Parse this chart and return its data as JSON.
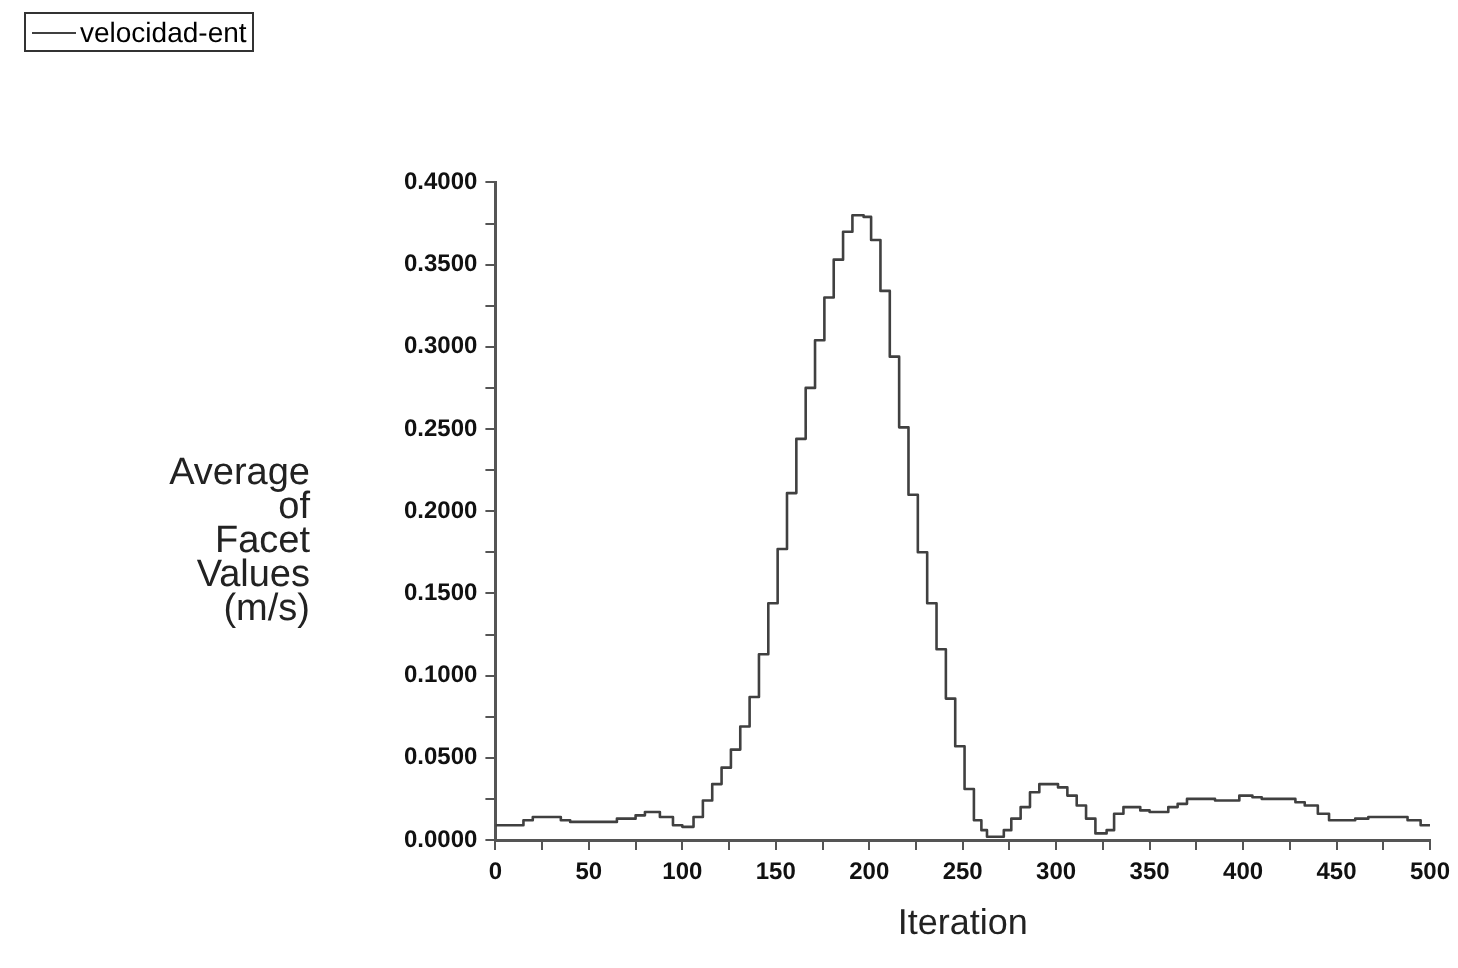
{
  "chart_data": {
    "type": "step",
    "xlabel": "Iteration",
    "ylabel": "Average\nof\nFacet\nValues\n(m/s)",
    "legend": "top left",
    "grid": false,
    "marker": "none",
    "line_style": "solid",
    "xlim": [
      0,
      500
    ],
    "xticks": [
      0,
      {
        "value": 25,
        "label": null
      },
      50,
      {
        "value": 75,
        "label": null
      },
      100,
      {
        "value": 125,
        "label": null
      },
      150,
      {
        "value": 175,
        "label": null
      },
      200,
      {
        "value": 225,
        "label": null
      },
      250,
      {
        "value": 275,
        "label": null
      },
      300,
      {
        "value": 325,
        "label": null
      },
      350,
      {
        "value": 375,
        "label": null
      },
      400,
      {
        "value": 425,
        "label": null
      },
      450,
      {
        "value": 475,
        "label": null
      },
      500
    ],
    "ylim": [
      0,
      0.4
    ],
    "yticks": [
      {
        "value": 0,
        "label": "0.0000"
      },
      {
        "value": 0.025,
        "label": null
      },
      {
        "value": 0.05,
        "label": "0.0500"
      },
      {
        "value": 0.075,
        "label": null
      },
      {
        "value": 0.1,
        "label": "0.1000"
      },
      {
        "value": 0.125,
        "label": null
      },
      {
        "value": 0.15,
        "label": "0.1500"
      },
      {
        "value": 0.175,
        "label": null
      },
      {
        "value": 0.2,
        "label": "0.2000"
      },
      {
        "value": 0.225,
        "label": null
      },
      {
        "value": 0.25,
        "label": "0.2500"
      },
      {
        "value": 0.275,
        "label": null
      },
      {
        "value": 0.3,
        "label": "0.3000"
      },
      {
        "value": 0.325,
        "label": null
      },
      {
        "value": 0.35,
        "label": "0.3500"
      },
      {
        "value": 0.375,
        "label": null
      },
      {
        "value": 0.4,
        "label": "0.4000"
      }
    ],
    "series": [
      {
        "name": "velocidad-ent",
        "color": "#404040",
        "x": [
          0,
          15,
          20,
          35,
          40,
          65,
          75,
          80,
          88,
          95,
          100,
          106,
          111,
          116,
          121,
          126,
          131,
          136,
          141,
          146,
          151,
          156,
          161,
          166,
          171,
          176,
          181,
          186,
          191,
          197,
          201,
          206,
          211,
          216,
          221,
          226,
          231,
          236,
          241,
          246,
          251,
          256,
          260,
          263,
          272,
          276,
          281,
          286,
          291,
          301,
          306,
          311,
          316,
          321,
          327,
          331,
          336,
          345,
          350,
          360,
          365,
          370,
          385,
          398,
          405,
          410,
          428,
          433,
          440,
          446,
          460,
          467,
          480,
          488,
          495,
          500
        ],
        "values": [
          0.009,
          0.012,
          0.014,
          0.012,
          0.011,
          0.013,
          0.015,
          0.017,
          0.014,
          0.009,
          0.008,
          0.014,
          0.024,
          0.034,
          0.044,
          0.055,
          0.069,
          0.087,
          0.113,
          0.144,
          0.177,
          0.211,
          0.244,
          0.275,
          0.304,
          0.33,
          0.353,
          0.37,
          0.38,
          0.379,
          0.365,
          0.334,
          0.294,
          0.251,
          0.21,
          0.175,
          0.144,
          0.116,
          0.086,
          0.057,
          0.031,
          0.012,
          0.006,
          0.002,
          0.006,
          0.013,
          0.02,
          0.029,
          0.034,
          0.032,
          0.027,
          0.021,
          0.013,
          0.004,
          0.006,
          0.016,
          0.02,
          0.018,
          0.017,
          0.02,
          0.022,
          0.025,
          0.024,
          0.027,
          0.026,
          0.025,
          0.023,
          0.021,
          0.016,
          0.012,
          0.013,
          0.014,
          0.014,
          0.012,
          0.009,
          0.009
        ]
      }
    ]
  }
}
